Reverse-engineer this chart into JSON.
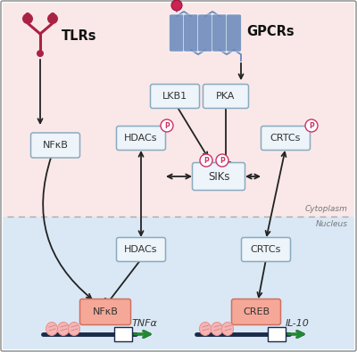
{
  "bg_cytoplasm": "#fae8e8",
  "bg_nucleus": "#dae8f5",
  "border_color": "#888888",
  "dashed_line_color": "#aaaaaa",
  "arrow_color": "#222222",
  "box_fill": "#edf4fa",
  "box_border": "#8aabbf",
  "salmon_fill": "#f5a898",
  "salmon_border": "#d07060",
  "p_circle_fill": "#ffffff",
  "p_circle_border": "#cc3366",
  "p_text_color": "#cc3366",
  "tlr_color": "#aa2244",
  "gpcr_color": "#6688bb",
  "gene_arrow_color": "#228833",
  "dna_color": "#1a2a4a",
  "cytoplasm_label": "Cytoplasm",
  "nucleus_label": "Nucleus",
  "tlr_label": "TLRs",
  "gpcr_label": "GPCRs",
  "lkb1_label": "LKB1",
  "pka_label": "PKA",
  "hdacs_cyto_label": "HDACs",
  "crtcs_cyto_label": "CRTCs",
  "siks_label": "SIKs",
  "nfkb_cyto_label": "NFκB",
  "hdacs_nuc_label": "HDACs",
  "crtcs_nuc_label": "CRTCs",
  "nfkb_nuc_label": "NFκB",
  "creb_label": "CREB",
  "tnfa_label": "TNFα",
  "il10_label": "IL-10"
}
